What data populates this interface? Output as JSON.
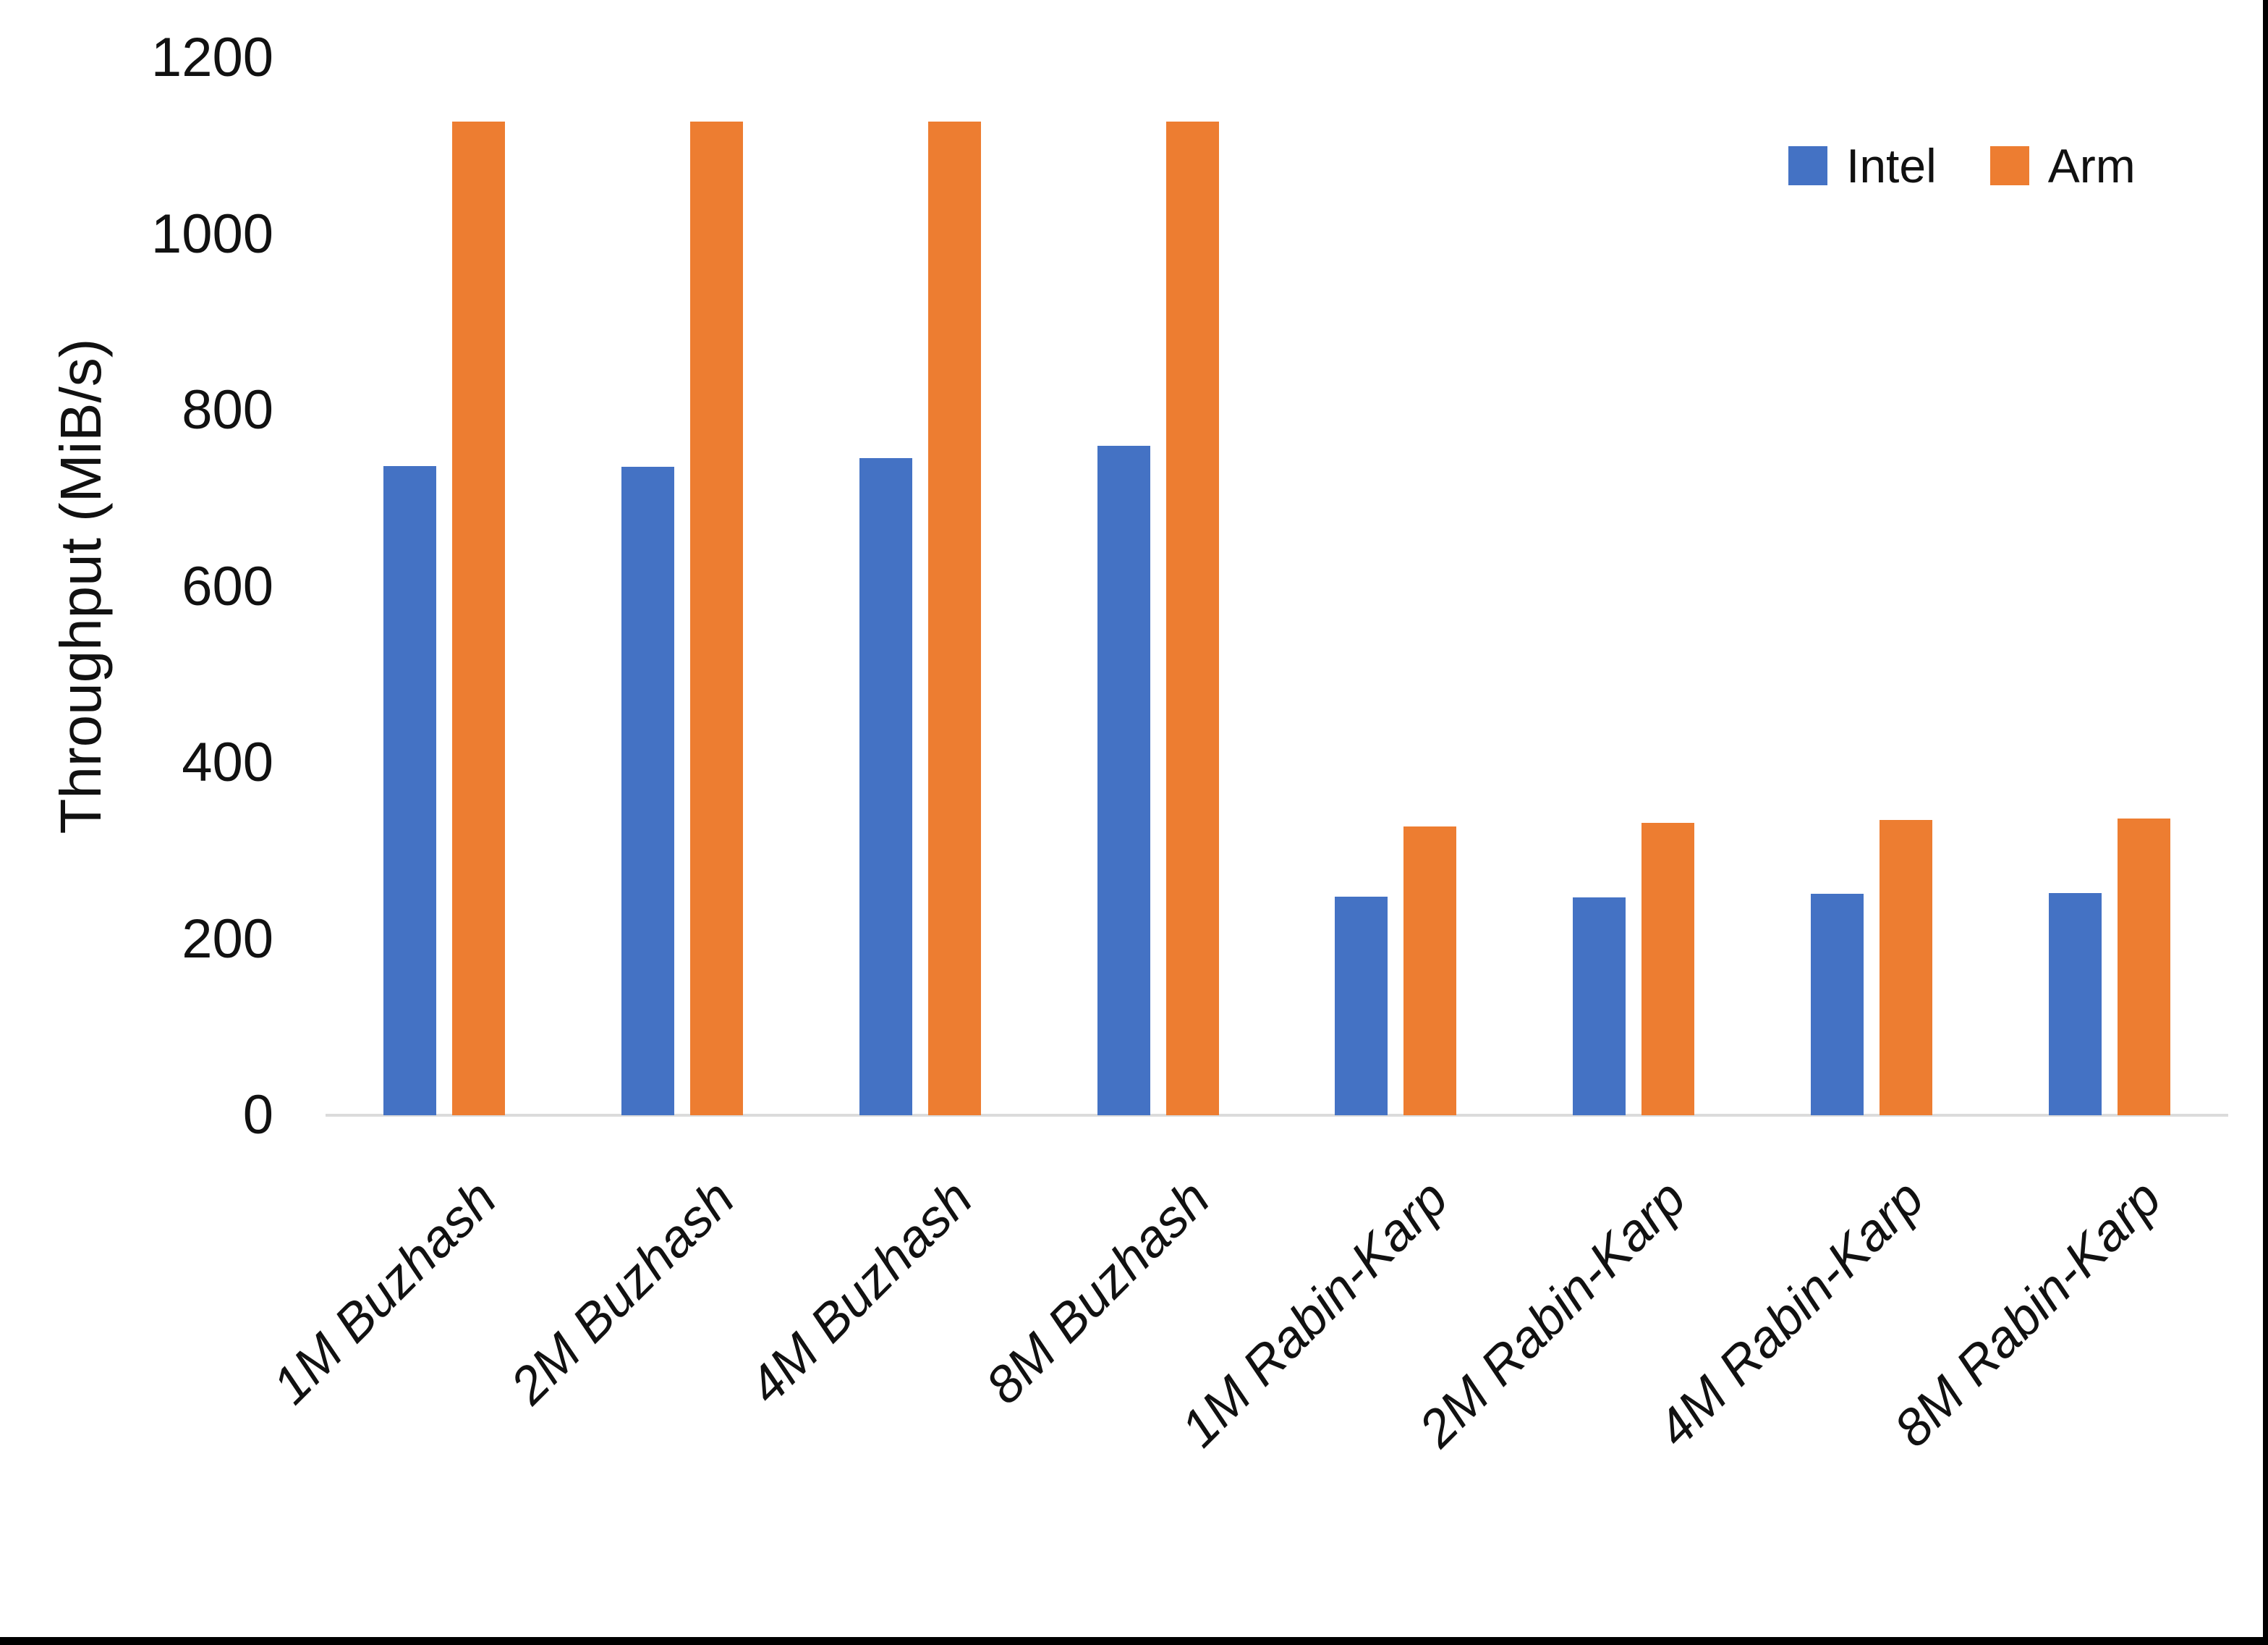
{
  "chart_data": {
    "type": "bar",
    "title": "",
    "ylabel": "Throughput (MiB/s)",
    "xlabel": "",
    "categories": [
      "1M Buzhash",
      "2M Buzhash",
      "4M Buzhash",
      "8M Buzhash",
      "1M Rabin-Karp",
      "2M Rabin-Karp",
      "4M Rabin-Karp",
      "8M Rabin-Karp"
    ],
    "series": [
      {
        "name": "Intel",
        "color": "#4472C4",
        "values": [
          737,
          736,
          746,
          760,
          248,
          247,
          251,
          252
        ]
      },
      {
        "name": "Arm",
        "color": "#ED7D31",
        "values": [
          1128,
          1128,
          1128,
          1128,
          328,
          332,
          335,
          337
        ]
      }
    ],
    "ylim": [
      0,
      1200
    ],
    "ytick_step": 200,
    "yticks": [
      "0",
      "200",
      "400",
      "600",
      "800",
      "1000",
      "1200"
    ],
    "grid": false,
    "legend_position": "top-right",
    "axis_line_color": "#DBDBDB"
  },
  "frame": {
    "border_color": "#000000"
  }
}
